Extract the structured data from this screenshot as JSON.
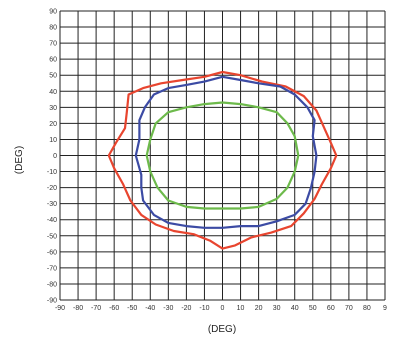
{
  "chart_data": {
    "type": "line",
    "title": "",
    "xlabel": "(DEG)",
    "ylabel": "(DEG)",
    "xlim": [
      -90,
      90
    ],
    "ylim": [
      -90,
      90
    ],
    "grid": true,
    "x_ticks": [
      "-90",
      "-80",
      "-70",
      "-60",
      "-50",
      "-40",
      "-30",
      "-20",
      "-10",
      "0",
      "10",
      "20",
      "30",
      "40",
      "50",
      "60",
      "70",
      "80",
      "9"
    ],
    "y_ticks": [
      "90",
      "80",
      "70",
      "60",
      "50",
      "40",
      "30",
      "20",
      "10",
      "0",
      "-10",
      "-20",
      "-30",
      "-40",
      "-50",
      "-60",
      "-70",
      "-80",
      "-90"
    ],
    "series": [
      {
        "color": "#e8452f",
        "points": [
          [
            0,
            52
          ],
          [
            10,
            50
          ],
          [
            22,
            46
          ],
          [
            35,
            43
          ],
          [
            45,
            37
          ],
          [
            52,
            28
          ],
          [
            56,
            18
          ],
          [
            60,
            8
          ],
          [
            63,
            0
          ],
          [
            60,
            -8
          ],
          [
            55,
            -18
          ],
          [
            51,
            -27
          ],
          [
            45,
            -36
          ],
          [
            38,
            -44
          ],
          [
            27,
            -48
          ],
          [
            16,
            -51
          ],
          [
            7,
            -56
          ],
          [
            0,
            -58
          ],
          [
            -7,
            -53
          ],
          [
            -16,
            -49
          ],
          [
            -27,
            -47
          ],
          [
            -37,
            -43
          ],
          [
            -45,
            -37
          ],
          [
            -51,
            -28
          ],
          [
            -55,
            -18
          ],
          [
            -60,
            -8
          ],
          [
            -63,
            0
          ],
          [
            -59,
            8
          ],
          [
            -54,
            17
          ],
          [
            -53,
            27
          ],
          [
            -52,
            38
          ],
          [
            -44,
            42
          ],
          [
            -34,
            45
          ],
          [
            -22,
            47
          ],
          [
            -10,
            49
          ],
          [
            0,
            52
          ]
        ]
      },
      {
        "color": "#3c4ba4",
        "points": [
          [
            0,
            49
          ],
          [
            10,
            47
          ],
          [
            20,
            45
          ],
          [
            32,
            43
          ],
          [
            40,
            38
          ],
          [
            47,
            30
          ],
          [
            51,
            22
          ],
          [
            50,
            12
          ],
          [
            52,
            0
          ],
          [
            51,
            -10
          ],
          [
            49,
            -20
          ],
          [
            46,
            -30
          ],
          [
            40,
            -37
          ],
          [
            30,
            -41
          ],
          [
            20,
            -44
          ],
          [
            10,
            -44
          ],
          [
            0,
            -45
          ],
          [
            -10,
            -45
          ],
          [
            -20,
            -44
          ],
          [
            -30,
            -42
          ],
          [
            -38,
            -37
          ],
          [
            -44,
            -28
          ],
          [
            -45,
            -20
          ],
          [
            -45,
            -12
          ],
          [
            -48,
            0
          ],
          [
            -46,
            10
          ],
          [
            -46,
            22
          ],
          [
            -43,
            30
          ],
          [
            -38,
            38
          ],
          [
            -30,
            42
          ],
          [
            -20,
            44
          ],
          [
            -10,
            46
          ],
          [
            0,
            49
          ]
        ]
      },
      {
        "color": "#6dba4b",
        "points": [
          [
            0,
            33
          ],
          [
            10,
            32
          ],
          [
            20,
            30
          ],
          [
            30,
            27
          ],
          [
            36,
            20
          ],
          [
            40,
            12
          ],
          [
            42,
            0
          ],
          [
            40,
            -10
          ],
          [
            36,
            -20
          ],
          [
            30,
            -27
          ],
          [
            20,
            -32
          ],
          [
            10,
            -33
          ],
          [
            0,
            -33
          ],
          [
            -10,
            -33
          ],
          [
            -20,
            -32
          ],
          [
            -30,
            -28
          ],
          [
            -36,
            -20
          ],
          [
            -40,
            -10
          ],
          [
            -42,
            0
          ],
          [
            -40,
            10
          ],
          [
            -37,
            20
          ],
          [
            -30,
            27
          ],
          [
            -20,
            30
          ],
          [
            -10,
            32
          ],
          [
            0,
            33
          ]
        ]
      }
    ]
  }
}
